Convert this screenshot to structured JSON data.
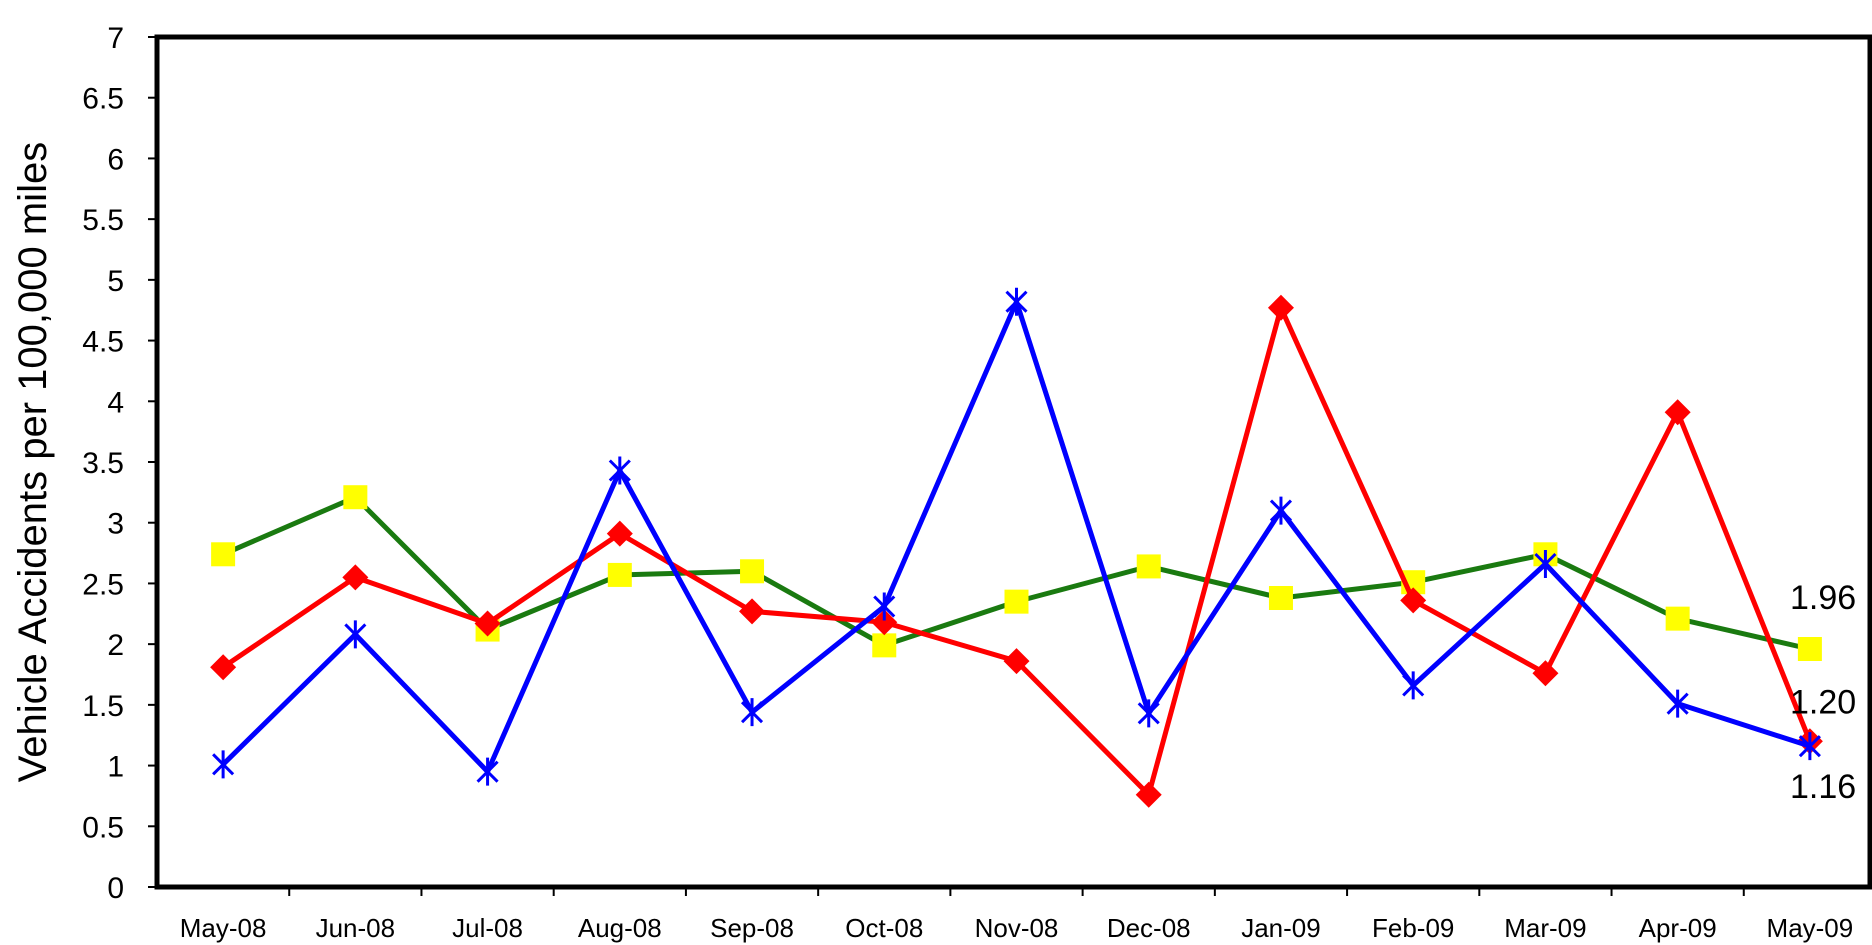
{
  "chart_data": {
    "type": "line",
    "title": "",
    "xlabel": "",
    "ylabel": "Vehicle Accidents per 100,000 miles",
    "ylim": [
      0,
      7
    ],
    "y_ticks": [
      "0",
      "0.5",
      "1",
      "1.5",
      "2",
      "2.5",
      "3",
      "3.5",
      "4",
      "4.5",
      "5",
      "5.5",
      "6",
      "6.5",
      "7"
    ],
    "grid": false,
    "legend": "none",
    "categories": [
      "May-08",
      "Jun-08",
      "Jul-08",
      "Aug-08",
      "Sep-08",
      "Oct-08",
      "Nov-08",
      "Dec-08",
      "Jan-09",
      "Feb-09",
      "Mar-09",
      "Apr-09",
      "May-09"
    ],
    "series": [
      {
        "color": "#1a7a10",
        "marker": "square",
        "marker_color": "#ffff00",
        "values": [
          2.74,
          3.21,
          2.12,
          2.57,
          2.6,
          1.99,
          2.35,
          2.64,
          2.38,
          2.51,
          2.74,
          2.21,
          1.96
        ],
        "end_label": "1.96"
      },
      {
        "color": "#ff0000",
        "marker": "diamond",
        "marker_color": "#ff0000",
        "values": [
          1.81,
          2.55,
          2.17,
          2.91,
          2.27,
          2.18,
          1.86,
          0.76,
          4.77,
          2.36,
          1.76,
          3.91,
          1.2
        ],
        "end_label": "1.20"
      },
      {
        "color": "#0000ff",
        "marker": "asterisk",
        "marker_color": "#0000ff",
        "values": [
          1.01,
          2.08,
          0.95,
          3.43,
          1.44,
          2.31,
          4.82,
          1.43,
          3.1,
          1.66,
          2.66,
          1.51,
          1.16
        ],
        "end_label": "1.16"
      }
    ]
  }
}
